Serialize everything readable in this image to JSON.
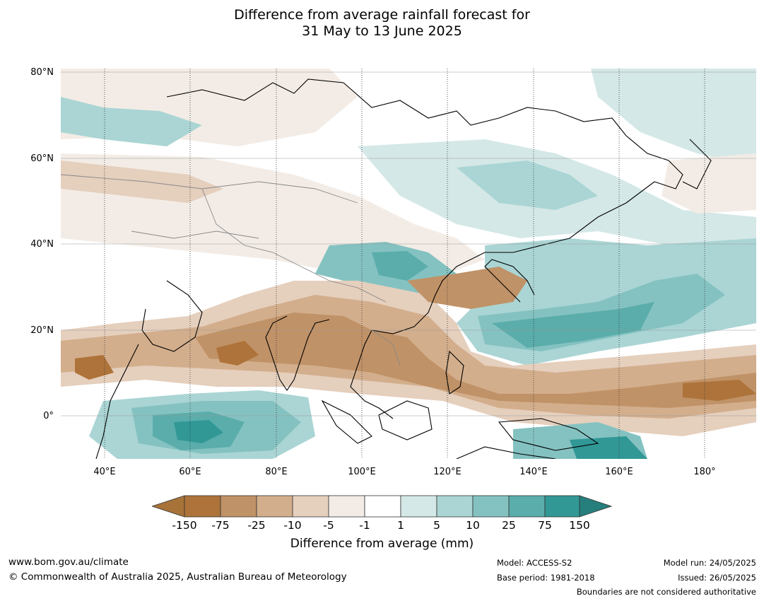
{
  "title": {
    "line1": "Difference from average rainfall forecast for",
    "line2": "31 May to 13 June 2025"
  },
  "map": {
    "lat_labels": [
      "80°N",
      "60°N",
      "40°N",
      "20°N",
      "0°"
    ],
    "lon_labels": [
      "40°E",
      "60°E",
      "80°E",
      "100°E",
      "120°E",
      "140°E",
      "160°E",
      "180°"
    ]
  },
  "legend": {
    "ticks": [
      "-150",
      "-75",
      "-25",
      "-10",
      "-5",
      "-1",
      "1",
      "5",
      "10",
      "25",
      "75",
      "150"
    ],
    "colors": [
      "#a87339",
      "#ae733a",
      "#c09267",
      "#d3ae8c",
      "#e5cfbd",
      "#f3ece6",
      "#ffffff",
      "#d4e8e7",
      "#aad5d4",
      "#84c2c1",
      "#5aadab",
      "#319896",
      "#267f7d"
    ],
    "title": "Difference from average (mm)"
  },
  "footer": {
    "website": "www.bom.gov.au/climate",
    "copyright": "© Commonwealth of Australia 2025, Australian Bureau of Meteorology",
    "model": "Model: ACCESS-S2",
    "base_period": "Base period: 1981-2018",
    "model_run": "Model run: 24/05/2025",
    "issued": "Issued: 26/05/2025",
    "boundaries_note": "Boundaries are not considered authoritative"
  }
}
